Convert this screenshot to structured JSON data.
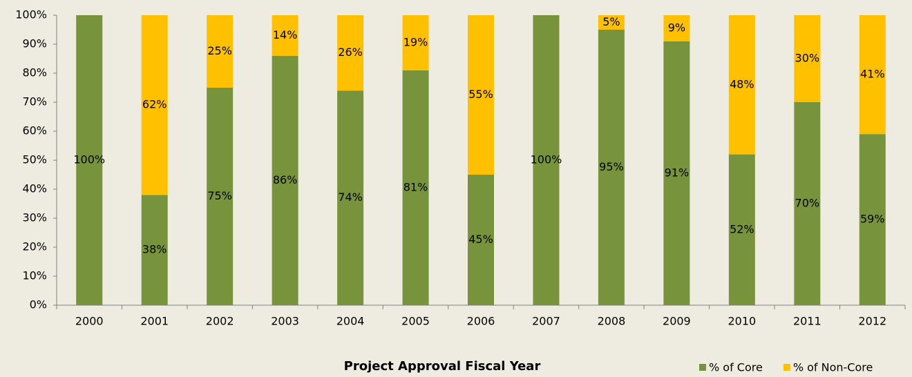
{
  "chart_data": {
    "type": "stacked_bar",
    "x_label": "Project Approval Fiscal Year",
    "categories": [
      "2000",
      "2001",
      "2002",
      "2003",
      "2004",
      "2005",
      "2006",
      "2007",
      "2008",
      "2009",
      "2010",
      "2011",
      "2012"
    ],
    "series": [
      {
        "name": "% of Core",
        "color": "#77933c",
        "values": [
          100,
          38,
          75,
          86,
          74,
          81,
          45,
          100,
          95,
          91,
          52,
          70,
          59
        ],
        "value_labels": [
          "100%",
          "38%",
          "75%",
          "86%",
          "74%",
          "81%",
          "45%",
          "100%",
          "95%",
          "91%",
          "52%",
          "70%",
          "59%"
        ]
      },
      {
        "name": "% of Non-Core",
        "color": "#ffc000",
        "values": [
          0,
          62,
          25,
          14,
          26,
          19,
          55,
          0,
          5,
          9,
          48,
          30,
          41
        ],
        "value_labels": [
          null,
          "62%",
          "25%",
          "14%",
          "26%",
          "19%",
          "55%",
          null,
          "5%",
          "9%",
          "48%",
          "30%",
          "41%"
        ]
      }
    ],
    "ylim": [
      0,
      100
    ],
    "yticks": [
      {
        "value": 0,
        "label": "0%"
      },
      {
        "value": 10,
        "label": "10%"
      },
      {
        "value": 20,
        "label": "20%"
      },
      {
        "value": 30,
        "label": "30%"
      },
      {
        "value": 40,
        "label": "40%"
      },
      {
        "value": 50,
        "label": "50%"
      },
      {
        "value": 60,
        "label": "60%"
      },
      {
        "value": 70,
        "label": "70%"
      },
      {
        "value": 80,
        "label": "80%"
      },
      {
        "value": 90,
        "label": "90%"
      },
      {
        "value": 100,
        "label": "100%"
      }
    ],
    "grid": false,
    "legend": "bottom-right"
  }
}
